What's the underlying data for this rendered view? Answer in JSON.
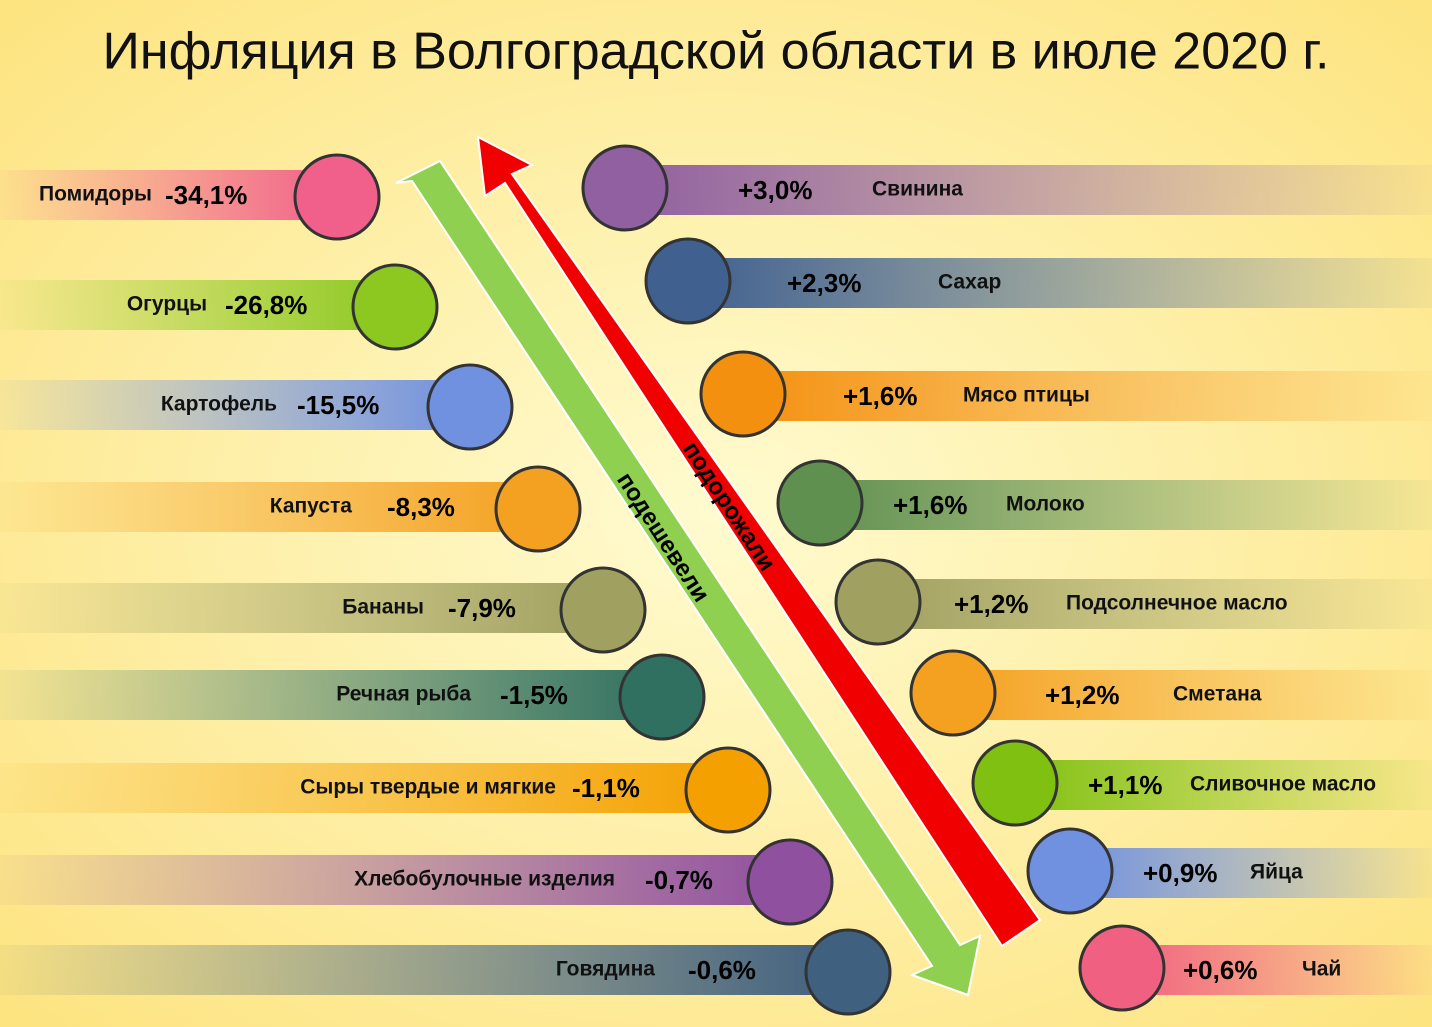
{
  "title": "Инфляция в Волгоградской области в июле 2020 г.",
  "arrows": {
    "down_label": "подешевели",
    "up_label": "подорожали"
  },
  "cheaper": [
    {
      "name": "Помидоры",
      "change": "-34,1%"
    },
    {
      "name": "Огурцы",
      "change": "-26,8%"
    },
    {
      "name": "Картофель",
      "change": "-15,5%"
    },
    {
      "name": "Капуста",
      "change": "-8,3%"
    },
    {
      "name": "Бананы",
      "change": "-7,9%"
    },
    {
      "name": "Речная рыба",
      "change": "-1,5%"
    },
    {
      "name": "Сыры твердые и мягкие",
      "change": "-1,1%"
    },
    {
      "name": "Хлебобулочные изделия",
      "change": "-0,7%"
    },
    {
      "name": "Говядина",
      "change": "-0,6%"
    }
  ],
  "pricier": [
    {
      "name": "Свинина",
      "change": "+3,0%"
    },
    {
      "name": "Сахар",
      "change": "+2,3%"
    },
    {
      "name": "Мясо птицы",
      "change": "+1,6%"
    },
    {
      "name": "Молоко",
      "change": "+1,6%"
    },
    {
      "name": "Подсолнечное масло",
      "change": "+1,2%"
    },
    {
      "name": "Сметана",
      "change": "+1,2%"
    },
    {
      "name": "Сливочное масло",
      "change": "+1,1%"
    },
    {
      "name": "Яйца",
      "change": "+0,9%"
    },
    {
      "name": "Чай",
      "change": "+0,6%"
    }
  ]
}
